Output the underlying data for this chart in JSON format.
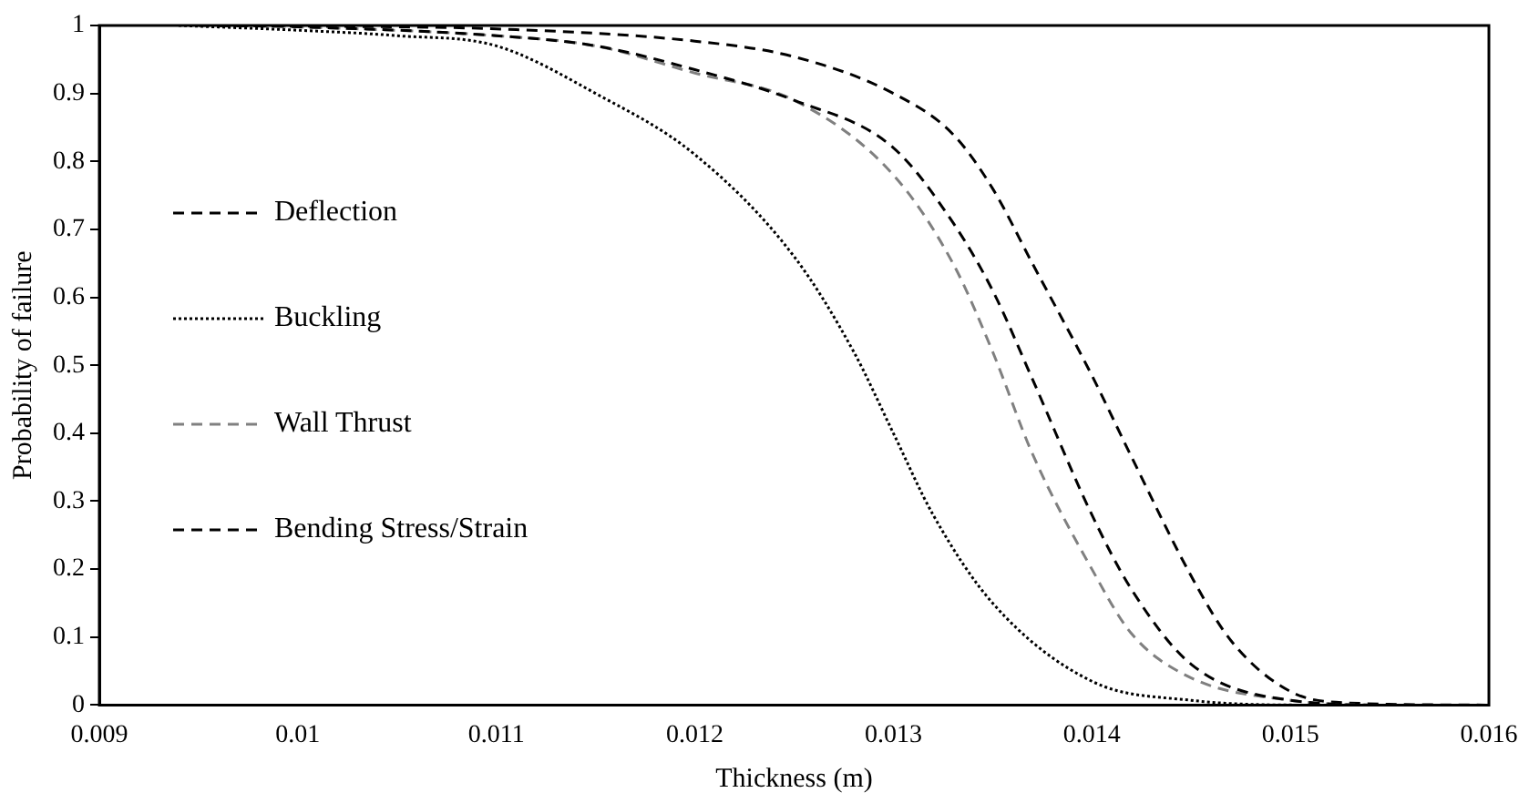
{
  "chart_data": {
    "type": "line",
    "xlabel": "Thickness (m)",
    "ylabel": "Probability of failure",
    "xlim": [
      0.009,
      0.016
    ],
    "ylim": [
      0,
      1
    ],
    "xticks": [
      0.009,
      0.01,
      0.011,
      0.012,
      0.013,
      0.014,
      0.015,
      0.016
    ],
    "yticks": [
      0,
      0.1,
      0.2,
      0.3,
      0.4,
      0.5,
      0.6,
      0.7,
      0.8,
      0.9,
      1
    ],
    "grid": false,
    "legend": "left",
    "marker": "none",
    "series": [
      {
        "name": "Deflection",
        "color": "#000000",
        "line_style": "dashed",
        "x": [
          0.0096,
          0.01,
          0.011,
          0.0115,
          0.012,
          0.0125,
          0.013,
          0.0133,
          0.0135,
          0.0137,
          0.014,
          0.0142,
          0.0145,
          0.015,
          0.0155,
          0.0159
        ],
        "values": [
          1,
          0.998,
          0.985,
          0.97,
          0.935,
          0.89,
          0.82,
          0.71,
          0.61,
          0.48,
          0.28,
          0.17,
          0.06,
          0.007,
          0,
          0
        ]
      },
      {
        "name": "Buckling",
        "color": "#000000",
        "line_style": "dotted",
        "x": [
          0.0094,
          0.01,
          0.0105,
          0.011,
          0.0115,
          0.012,
          0.0125,
          0.0128,
          0.013,
          0.0132,
          0.0135,
          0.014,
          0.0145,
          0.0151,
          0.0156,
          0.0157
        ],
        "values": [
          1,
          0.993,
          0.985,
          0.97,
          0.9,
          0.81,
          0.66,
          0.52,
          0.4,
          0.28,
          0.15,
          0.035,
          0.007,
          0,
          0,
          0
        ]
      },
      {
        "name": "Wall Thrust",
        "color": "#808080",
        "line_style": "dashed",
        "x": [
          0.0097,
          0.01,
          0.011,
          0.0115,
          0.012,
          0.0125,
          0.013,
          0.0133,
          0.0135,
          0.0137,
          0.014,
          0.0142,
          0.0145,
          0.015,
          0.0154,
          0.0158
        ],
        "values": [
          1,
          0.998,
          0.985,
          0.97,
          0.93,
          0.89,
          0.78,
          0.65,
          0.52,
          0.37,
          0.2,
          0.105,
          0.04,
          0.007,
          0,
          0
        ]
      },
      {
        "name": "Bending Stress/Strain",
        "color": "#000000",
        "line_style": "dashed",
        "x": [
          0.0095,
          0.01,
          0.011,
          0.012,
          0.0125,
          0.013,
          0.0133,
          0.0135,
          0.0137,
          0.014,
          0.0142,
          0.0145,
          0.0147,
          0.015,
          0.0153,
          0.016
        ],
        "values": [
          1,
          0.999,
          0.995,
          0.977,
          0.954,
          0.9,
          0.84,
          0.76,
          0.65,
          0.485,
          0.365,
          0.19,
          0.095,
          0.02,
          0.003,
          0
        ]
      }
    ]
  }
}
